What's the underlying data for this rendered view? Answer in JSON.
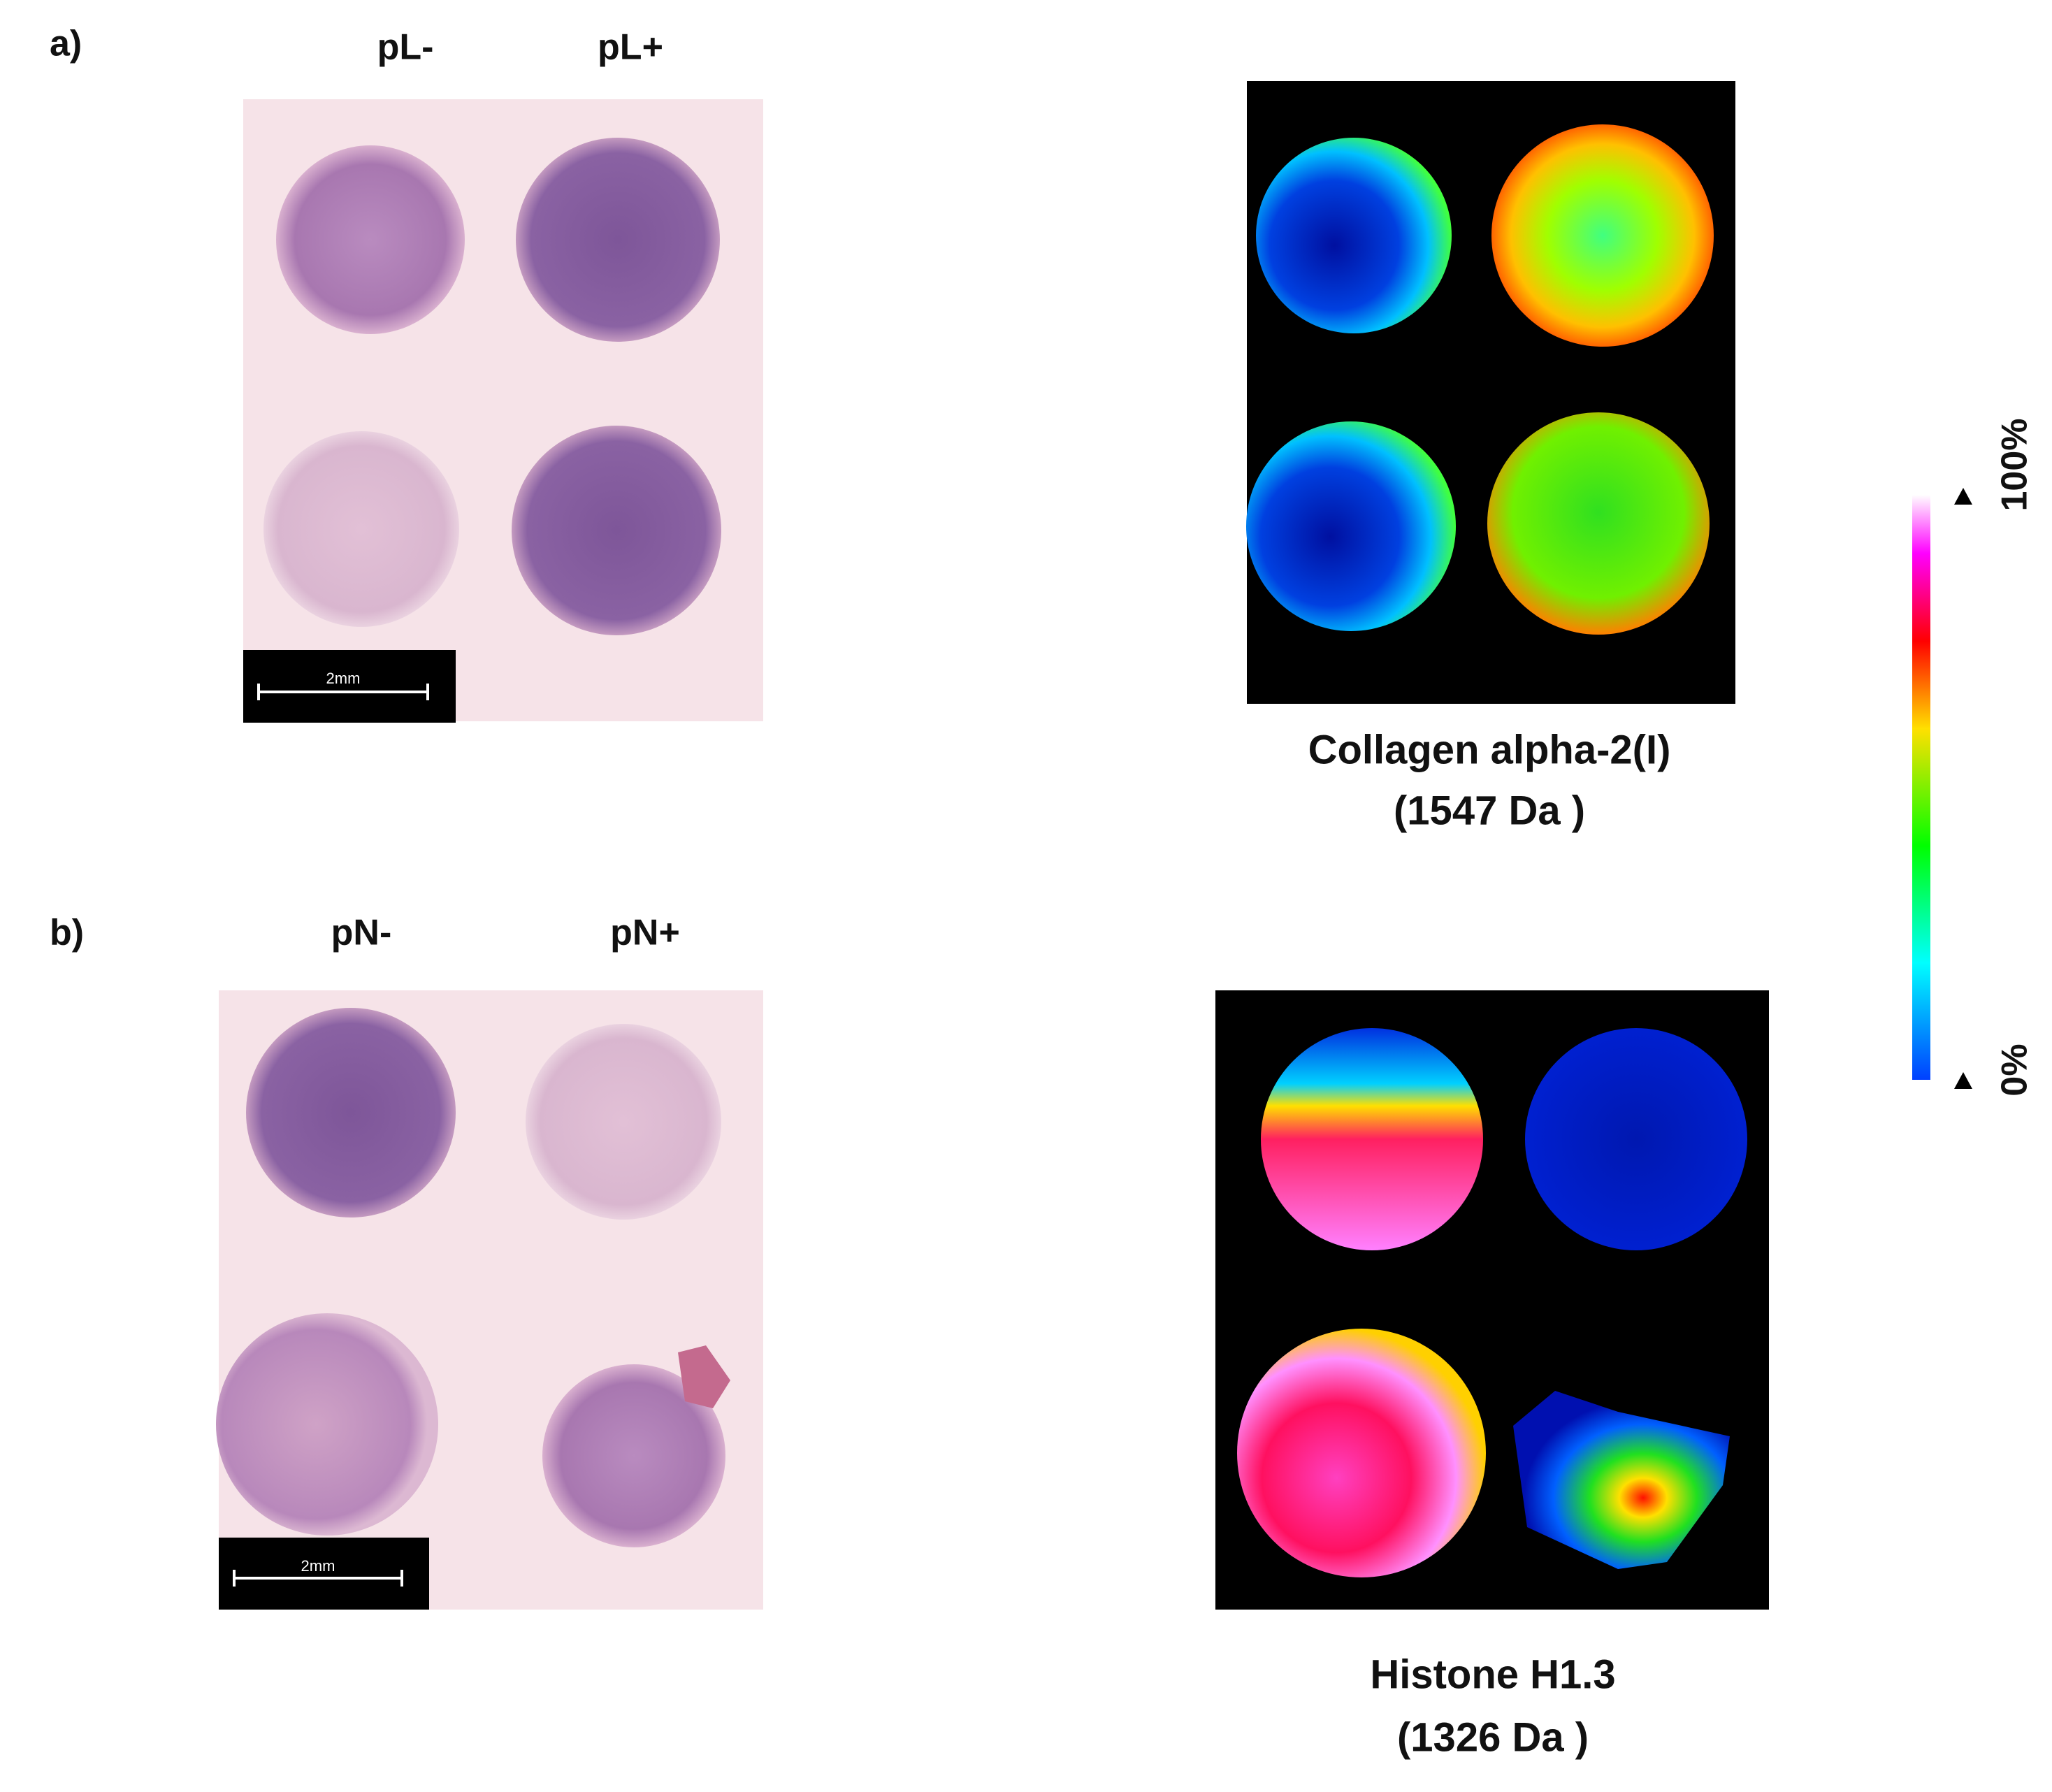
{
  "panels": [
    {
      "label": "a)",
      "columns": [
        "pL-",
        "pL+"
      ],
      "scale_bar": "2mm",
      "caption": [
        "Collagen alpha-2(I)",
        "(1547 Da )"
      ]
    },
    {
      "label": "b)",
      "columns": [
        "pN-",
        "pN+"
      ],
      "scale_bar": "2mm",
      "caption": [
        "Histone H1.3",
        "(1326 Da )"
      ]
    }
  ],
  "color_scale": {
    "max_label": "100%",
    "min_label": "0%"
  }
}
